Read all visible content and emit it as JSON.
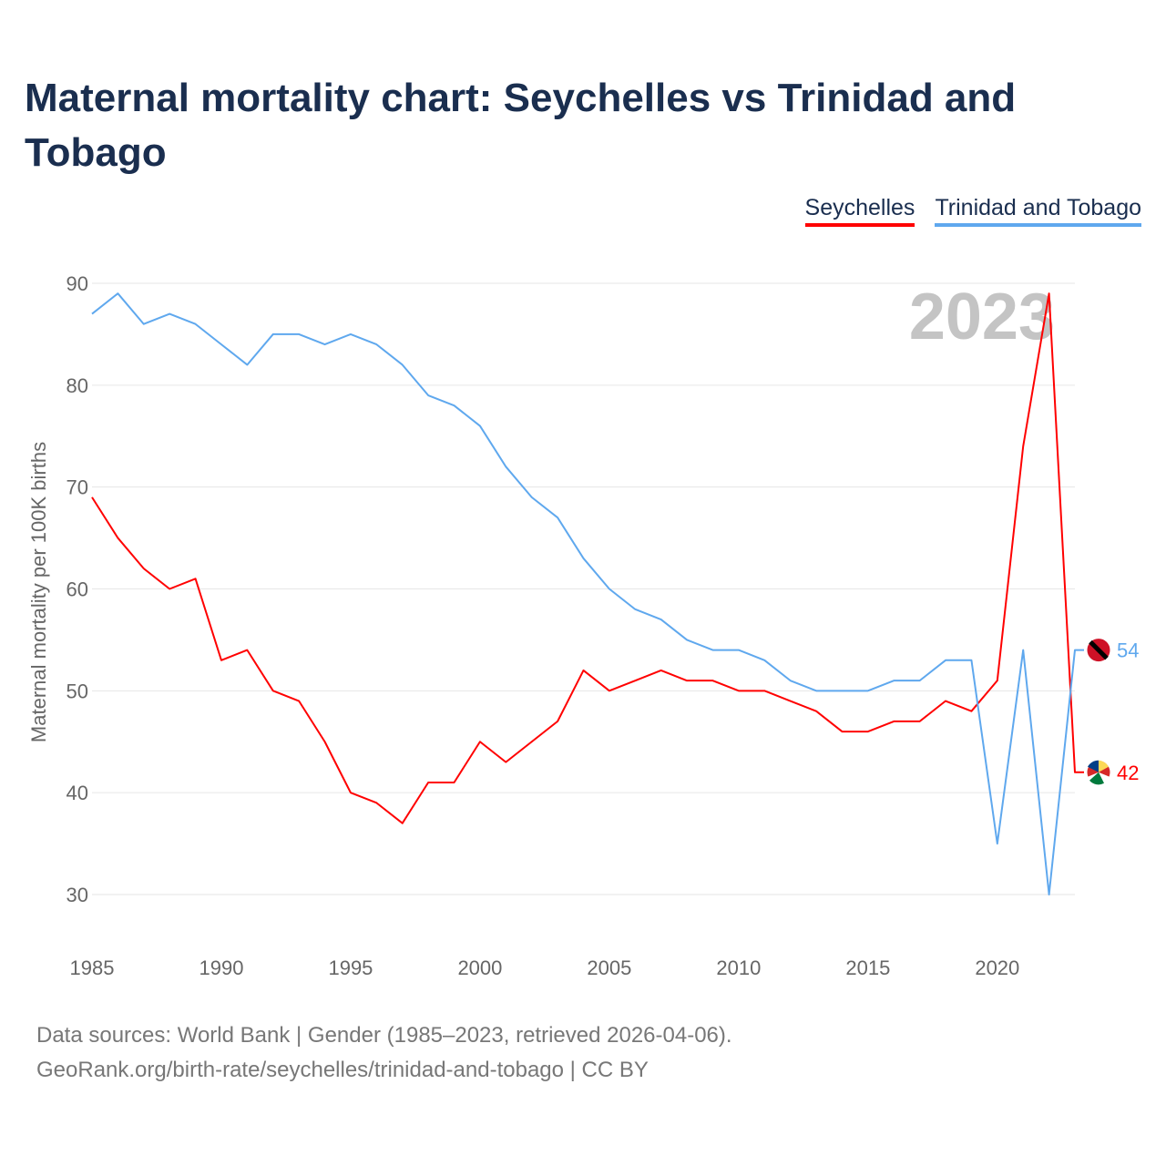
{
  "title": "Maternal mortality chart: Seychelles vs Trinidad and Tobago",
  "footer": {
    "line1": "Data sources: World Bank | Gender (1985–2023, retrieved 2026-04-06).",
    "line2": "GeoRank.org/birth-rate/seychelles/trinidad-and-tobago | CC BY"
  },
  "chart_data": {
    "type": "line",
    "title": "Maternal mortality chart: Seychelles vs Trinidad and Tobago",
    "xlabel": "",
    "ylabel": "Maternal mortality per 100K births",
    "ylim": [
      30,
      90
    ],
    "xlim": [
      1985,
      2023
    ],
    "yticks": [
      30,
      40,
      50,
      60,
      70,
      80,
      90
    ],
    "xticks": [
      1985,
      1990,
      1995,
      2000,
      2005,
      2010,
      2015,
      2020
    ],
    "grid": true,
    "legend_position": "top-right",
    "year_label": "2023",
    "x": [
      1985,
      1986,
      1987,
      1988,
      1989,
      1990,
      1991,
      1992,
      1993,
      1994,
      1995,
      1996,
      1997,
      1998,
      1999,
      2000,
      2001,
      2002,
      2003,
      2004,
      2005,
      2006,
      2007,
      2008,
      2009,
      2010,
      2011,
      2012,
      2013,
      2014,
      2015,
      2016,
      2017,
      2018,
      2019,
      2020,
      2021,
      2022,
      2023
    ],
    "series": [
      {
        "name": "Seychelles",
        "color": "#ff0000",
        "end_label": "42",
        "values": [
          69,
          65,
          62,
          60,
          61,
          53,
          54,
          50,
          49,
          45,
          40,
          39,
          37,
          41,
          41,
          45,
          43,
          45,
          47,
          52,
          50,
          51,
          52,
          51,
          51,
          50,
          50,
          49,
          48,
          46,
          46,
          47,
          47,
          49,
          48,
          51,
          74,
          89,
          42
        ]
      },
      {
        "name": "Trinidad and Tobago",
        "color": "#5fa8ee",
        "end_label": "54",
        "values": [
          87,
          89,
          86,
          87,
          86,
          84,
          82,
          85,
          85,
          84,
          85,
          84,
          82,
          79,
          78,
          76,
          72,
          69,
          67,
          63,
          60,
          58,
          57,
          55,
          54,
          54,
          53,
          51,
          50,
          50,
          50,
          51,
          51,
          53,
          53,
          35,
          54,
          30,
          54
        ]
      }
    ]
  }
}
